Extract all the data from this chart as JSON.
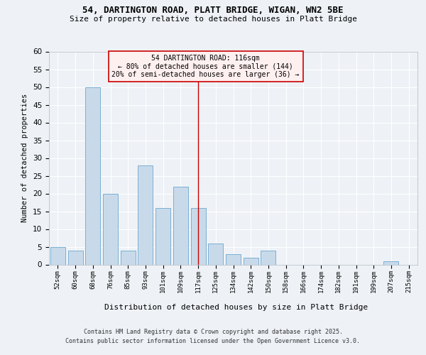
{
  "title1": "54, DARTINGTON ROAD, PLATT BRIDGE, WIGAN, WN2 5BE",
  "title2": "Size of property relative to detached houses in Platt Bridge",
  "xlabel": "Distribution of detached houses by size in Platt Bridge",
  "ylabel": "Number of detached properties",
  "categories": [
    "52sqm",
    "60sqm",
    "68sqm",
    "76sqm",
    "85sqm",
    "93sqm",
    "101sqm",
    "109sqm",
    "117sqm",
    "125sqm",
    "134sqm",
    "142sqm",
    "150sqm",
    "158sqm",
    "166sqm",
    "174sqm",
    "182sqm",
    "191sqm",
    "199sqm",
    "207sqm",
    "215sqm"
  ],
  "values": [
    5,
    4,
    50,
    20,
    4,
    28,
    16,
    22,
    16,
    6,
    3,
    2,
    4,
    0,
    0,
    0,
    0,
    0,
    0,
    1,
    0
  ],
  "bar_color": "#c8daea",
  "bar_edge_color": "#7bafd4",
  "vline_index": 8,
  "annotation_title": "54 DARTINGTON ROAD: 116sqm",
  "annotation_line1": "← 80% of detached houses are smaller (144)",
  "annotation_line2": "20% of semi-detached houses are larger (36) →",
  "annotation_box_facecolor": "#fff0f0",
  "annotation_edge_color": "#cc0000",
  "ylim": [
    0,
    60
  ],
  "yticks": [
    0,
    5,
    10,
    15,
    20,
    25,
    30,
    35,
    40,
    45,
    50,
    55,
    60
  ],
  "footer1": "Contains HM Land Registry data © Crown copyright and database right 2025.",
  "footer2": "Contains public sector information licensed under the Open Government Licence v3.0.",
  "bg_color": "#eef2f6",
  "plot_bg_color": "#eef2f6",
  "grid_color": "#ffffff",
  "title1_fontsize": 9,
  "title2_fontsize": 8,
  "ylabel_fontsize": 7.5,
  "xlabel_fontsize": 8,
  "xtick_fontsize": 6.5,
  "ytick_fontsize": 7.5,
  "footer_fontsize": 6,
  "annot_fontsize": 7
}
